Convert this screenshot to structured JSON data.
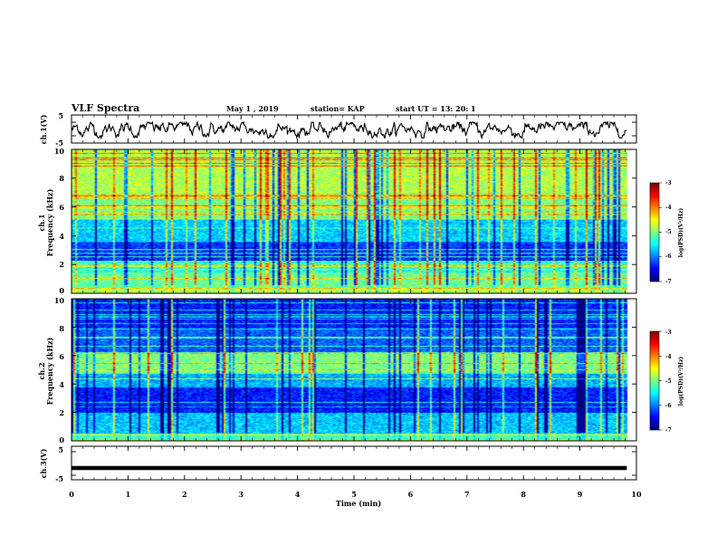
{
  "header": {
    "title": "VLF Spectra",
    "date": "May 1  , 2019",
    "station": "station= KAP",
    "start": "start  UT  =   13: 20: 1"
  },
  "chart_data": [
    {
      "type": "line",
      "ylabel": "ch.1(V)",
      "ylim": [
        -5,
        5
      ],
      "yticks": [
        "5",
        "-5"
      ],
      "xlim": [
        0,
        10
      ],
      "note": "noisy waveform oscillating between about -3 and +2 V"
    },
    {
      "type": "heatmap",
      "ylabel": "ch.1\nFrequency  (kHz)",
      "ylabel_line1": "ch.1",
      "ylabel_line2": "Frequency  (kHz)",
      "ylim": [
        0,
        10
      ],
      "yticks": [
        "0",
        "2",
        "4",
        "6",
        "8",
        "10"
      ],
      "xlim": [
        0,
        10
      ],
      "colorbar": {
        "label": "log(PSD)(V²/Hz)",
        "range": [
          -7,
          -3
        ],
        "ticks": [
          "-3",
          "-4",
          "-5",
          "-6",
          "-7"
        ],
        "colormap": "jet"
      }
    },
    {
      "type": "heatmap",
      "ylabel_line1": "ch.2",
      "ylabel_line2": "Frequency  (kHz)",
      "ylim": [
        0,
        10
      ],
      "yticks": [
        "0",
        "2",
        "4",
        "6",
        "8",
        "10"
      ],
      "xlim": [
        0,
        10
      ],
      "colorbar": {
        "label": "log(PSD)(V²/Hz)",
        "range": [
          -7,
          -3
        ],
        "ticks": [
          "-3",
          "-4",
          "-5",
          "-6",
          "-7"
        ],
        "colormap": "jet"
      }
    },
    {
      "type": "line",
      "ylabel": "ch.3(V)",
      "ylim": [
        -5,
        5
      ],
      "yticks": [
        "5",
        "-5"
      ],
      "xlim": [
        0,
        10
      ],
      "note": "flat thick line at about -1.5 V"
    }
  ],
  "xaxis": {
    "label": "Time  (min)",
    "ticks": [
      "0",
      "1",
      "2",
      "3",
      "4",
      "5",
      "6",
      "7",
      "8",
      "9",
      "10"
    ]
  },
  "colors": {
    "frame": "#000000",
    "line": "#000000"
  }
}
